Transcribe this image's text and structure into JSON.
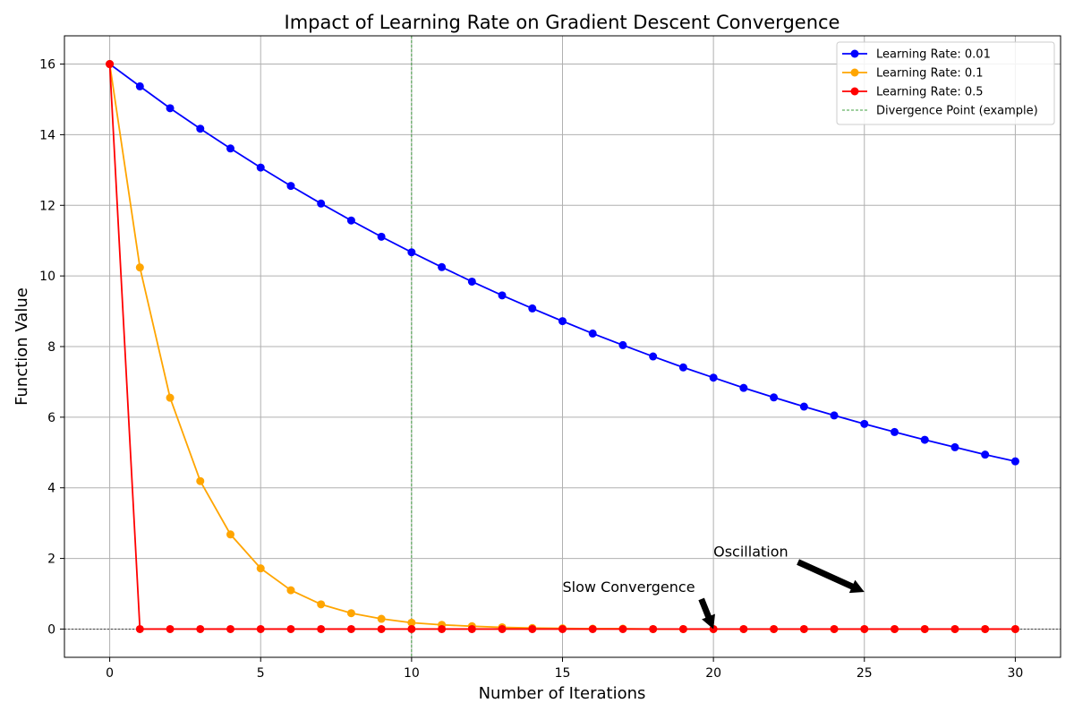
{
  "chart_data": {
    "type": "line",
    "title": "Impact of Learning Rate on Gradient Descent Convergence",
    "xlabel": "Number of Iterations",
    "ylabel": "Function Value",
    "xlim": [
      -1.5,
      31.5
    ],
    "ylim": [
      -0.8,
      16.8
    ],
    "xticks": [
      0,
      5,
      10,
      15,
      20,
      25,
      30
    ],
    "yticks": [
      0,
      2,
      4,
      6,
      8,
      10,
      12,
      14,
      16
    ],
    "grid": true,
    "legend_position": "top-right",
    "x": [
      0,
      1,
      2,
      3,
      4,
      5,
      6,
      7,
      8,
      9,
      10,
      11,
      12,
      13,
      14,
      15,
      16,
      17,
      18,
      19,
      20,
      21,
      22,
      23,
      24,
      25,
      26,
      27,
      28,
      29,
      30
    ],
    "series": [
      {
        "name": "Learning Rate: 0.01",
        "color": "#0000ff",
        "values": [
          16.0,
          15.37,
          14.75,
          14.17,
          13.61,
          13.07,
          12.55,
          12.05,
          11.57,
          11.11,
          10.67,
          10.25,
          9.84,
          9.45,
          9.08,
          8.72,
          8.37,
          8.04,
          7.72,
          7.41,
          7.12,
          6.83,
          6.56,
          6.3,
          6.05,
          5.81,
          5.58,
          5.36,
          5.15,
          4.94,
          4.75
        ]
      },
      {
        "name": "Learning Rate: 0.1",
        "color": "#ffa500",
        "values": [
          16.0,
          10.24,
          6.55,
          4.19,
          2.68,
          1.72,
          1.1,
          0.7,
          0.45,
          0.29,
          0.18,
          0.12,
          0.08,
          0.05,
          0.03,
          0.02,
          0.01,
          0.01,
          0.0,
          0.0,
          0.0,
          0.0,
          0.0,
          0.0,
          0.0,
          0.0,
          0.0,
          0.0,
          0.0,
          0.0,
          0.0
        ]
      },
      {
        "name": "Learning Rate: 0.5",
        "color": "#ff0000",
        "values": [
          16.0,
          0.0,
          0.0,
          0.0,
          0.0,
          0.0,
          0.0,
          0.0,
          0.0,
          0.0,
          0.0,
          0.0,
          0.0,
          0.0,
          0.0,
          0.0,
          0.0,
          0.0,
          0.0,
          0.0,
          0.0,
          0.0,
          0.0,
          0.0,
          0.0,
          0.0,
          0.0,
          0.0,
          0.0,
          0.0,
          0.0
        ]
      }
    ],
    "reference_lines": [
      {
        "name": "Divergence Point (example)",
        "orientation": "vertical",
        "value": 10,
        "color": "#008000",
        "style": "dashed"
      },
      {
        "orientation": "horizontal",
        "value": 0,
        "color": "#000000",
        "style": "dashed"
      }
    ],
    "annotations": [
      {
        "text": "Slow Convergence",
        "color": "#0000ff",
        "text_x": 15,
        "text_y": 1.05,
        "arrow_from": [
          19.6,
          0.85
        ],
        "arrow_to": [
          20,
          0
        ]
      },
      {
        "text": "Oscillation",
        "color": "#ffa500",
        "text_x": 20,
        "text_y": 2.05,
        "arrow_from": [
          22.8,
          1.9
        ],
        "arrow_to": [
          25,
          1.05
        ]
      }
    ]
  }
}
